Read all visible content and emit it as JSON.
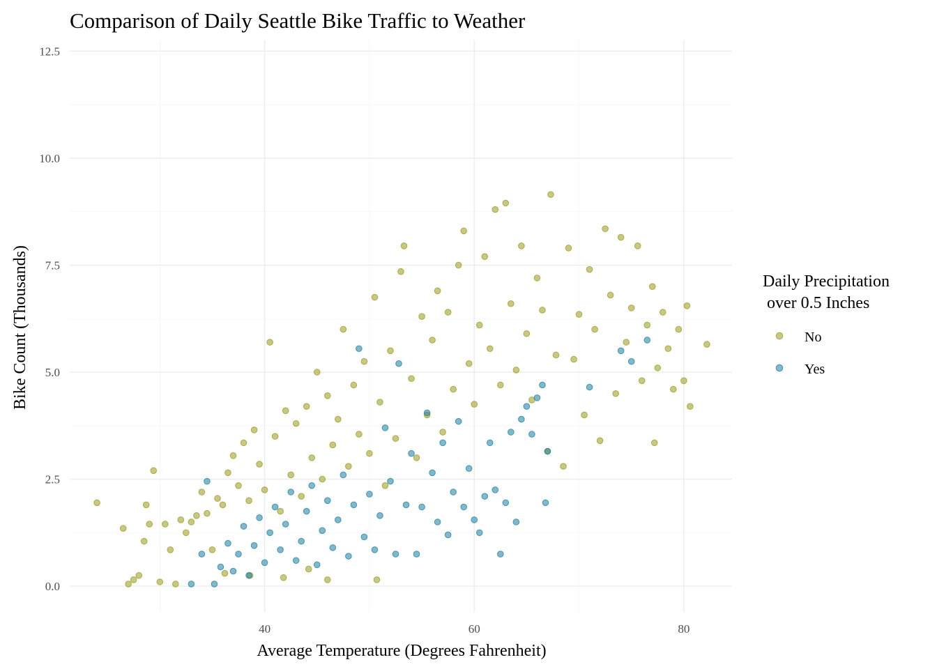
{
  "chart_data": {
    "type": "scatter",
    "title": "Comparison of Daily Seattle Bike Traffic to Weather",
    "xlabel": "Average Temperature (Degrees Fahrenheit)",
    "ylabel": "Bike Count (Thousands)",
    "xlim": [
      21.4,
      84.6
    ],
    "ylim": [
      -0.6,
      12.75
    ],
    "x_ticks": [
      40,
      60,
      80
    ],
    "y_ticks": [
      0.0,
      2.5,
      5.0,
      7.5,
      10.0,
      12.5
    ],
    "x_tick_labels": [
      "40",
      "60",
      "80"
    ],
    "y_tick_labels": [
      "0.0",
      "2.5",
      "5.0",
      "7.5",
      "10.0",
      "12.5"
    ],
    "grid": true,
    "legend": {
      "title": [
        "Daily Precipitation",
        " over 0.5 Inches"
      ],
      "placement": "right"
    },
    "series": [
      {
        "name": "No",
        "color": "#999a1c",
        "points": [
          [
            24.0,
            1.95
          ],
          [
            26.5,
            1.35
          ],
          [
            27.0,
            0.05
          ],
          [
            27.5,
            0.15
          ],
          [
            28.0,
            0.25
          ],
          [
            28.5,
            1.05
          ],
          [
            28.7,
            1.9
          ],
          [
            29.0,
            1.45
          ],
          [
            29.4,
            2.7
          ],
          [
            30.0,
            0.1
          ],
          [
            30.5,
            1.45
          ],
          [
            31.0,
            0.85
          ],
          [
            31.5,
            0.05
          ],
          [
            32.0,
            1.55
          ],
          [
            32.5,
            1.25
          ],
          [
            33.0,
            1.5
          ],
          [
            33.5,
            1.65
          ],
          [
            34.0,
            2.2
          ],
          [
            34.5,
            1.7
          ],
          [
            35.0,
            0.85
          ],
          [
            35.5,
            2.05
          ],
          [
            36.0,
            1.9
          ],
          [
            36.5,
            2.65
          ],
          [
            37.0,
            3.05
          ],
          [
            37.5,
            2.35
          ],
          [
            38.0,
            3.35
          ],
          [
            38.5,
            2.0
          ],
          [
            39.0,
            3.65
          ],
          [
            39.5,
            2.85
          ],
          [
            40.0,
            2.25
          ],
          [
            40.5,
            5.7
          ],
          [
            41.0,
            3.5
          ],
          [
            41.5,
            1.75
          ],
          [
            42.0,
            4.1
          ],
          [
            42.5,
            2.6
          ],
          [
            43.0,
            3.8
          ],
          [
            43.5,
            2.1
          ],
          [
            44.0,
            4.2
          ],
          [
            44.5,
            3.0
          ],
          [
            45.0,
            5.0
          ],
          [
            45.5,
            2.5
          ],
          [
            46.0,
            4.45
          ],
          [
            46.5,
            3.3
          ],
          [
            47.0,
            3.9
          ],
          [
            47.5,
            6.0
          ],
          [
            48.0,
            2.8
          ],
          [
            48.5,
            4.7
          ],
          [
            49.0,
            3.55
          ],
          [
            49.5,
            5.25
          ],
          [
            50.0,
            3.1
          ],
          [
            50.5,
            6.75
          ],
          [
            51.0,
            4.3
          ],
          [
            51.5,
            2.35
          ],
          [
            52.0,
            5.5
          ],
          [
            52.5,
            3.45
          ],
          [
            53.0,
            7.35
          ],
          [
            53.3,
            7.95
          ],
          [
            54.0,
            4.85
          ],
          [
            54.5,
            3.0
          ],
          [
            55.0,
            6.3
          ],
          [
            55.5,
            4.0
          ],
          [
            56.0,
            5.75
          ],
          [
            56.5,
            6.9
          ],
          [
            57.0,
            3.6
          ],
          [
            57.5,
            6.4
          ],
          [
            58.0,
            4.6
          ],
          [
            58.5,
            7.5
          ],
          [
            59.0,
            8.3
          ],
          [
            59.5,
            5.2
          ],
          [
            60.0,
            4.25
          ],
          [
            60.5,
            6.1
          ],
          [
            61.0,
            7.7
          ],
          [
            61.5,
            5.55
          ],
          [
            62.0,
            8.8
          ],
          [
            62.5,
            4.7
          ],
          [
            63.0,
            8.95
          ],
          [
            63.5,
            6.6
          ],
          [
            64.0,
            5.05
          ],
          [
            64.5,
            7.95
          ],
          [
            65.0,
            5.9
          ],
          [
            65.5,
            4.35
          ],
          [
            66.0,
            7.2
          ],
          [
            66.5,
            6.45
          ],
          [
            67.0,
            3.15
          ],
          [
            67.3,
            9.15
          ],
          [
            67.8,
            5.4
          ],
          [
            68.5,
            2.8
          ],
          [
            69.0,
            7.9
          ],
          [
            69.5,
            5.3
          ],
          [
            70.0,
            6.35
          ],
          [
            70.5,
            4.0
          ],
          [
            71.0,
            7.4
          ],
          [
            71.5,
            6.0
          ],
          [
            72.0,
            3.4
          ],
          [
            72.5,
            8.35
          ],
          [
            73.0,
            6.8
          ],
          [
            73.5,
            4.5
          ],
          [
            74.0,
            8.15
          ],
          [
            74.5,
            5.7
          ],
          [
            75.0,
            6.5
          ],
          [
            75.6,
            7.95
          ],
          [
            76.0,
            4.8
          ],
          [
            76.5,
            6.1
          ],
          [
            77.0,
            7.0
          ],
          [
            77.2,
            3.35
          ],
          [
            77.5,
            5.1
          ],
          [
            78.0,
            6.4
          ],
          [
            78.5,
            5.55
          ],
          [
            79.0,
            4.6
          ],
          [
            79.5,
            6.0
          ],
          [
            80.0,
            4.8
          ],
          [
            80.3,
            6.55
          ],
          [
            80.6,
            4.2
          ],
          [
            82.2,
            5.65
          ],
          [
            44.2,
            0.4
          ],
          [
            46.0,
            0.15
          ],
          [
            50.7,
            0.15
          ],
          [
            38.6,
            0.25
          ],
          [
            41.8,
            0.2
          ],
          [
            36.2,
            0.3
          ]
        ]
      },
      {
        "name": "Yes",
        "color": "#1a7fa3",
        "points": [
          [
            33.0,
            0.05
          ],
          [
            34.0,
            0.75
          ],
          [
            34.5,
            2.45
          ],
          [
            35.2,
            0.05
          ],
          [
            35.8,
            0.45
          ],
          [
            36.5,
            1.0
          ],
          [
            37.0,
            0.35
          ],
          [
            37.5,
            0.75
          ],
          [
            38.0,
            1.4
          ],
          [
            38.5,
            0.25
          ],
          [
            39.0,
            0.95
          ],
          [
            39.5,
            1.6
          ],
          [
            40.0,
            0.55
          ],
          [
            40.5,
            1.25
          ],
          [
            41.0,
            1.85
          ],
          [
            41.5,
            0.85
          ],
          [
            42.0,
            1.45
          ],
          [
            42.5,
            2.2
          ],
          [
            43.0,
            0.6
          ],
          [
            43.5,
            1.05
          ],
          [
            44.0,
            1.75
          ],
          [
            44.5,
            2.35
          ],
          [
            45.0,
            0.5
          ],
          [
            45.5,
            1.3
          ],
          [
            46.0,
            2.0
          ],
          [
            46.5,
            0.9
          ],
          [
            47.0,
            1.55
          ],
          [
            47.5,
            2.6
          ],
          [
            48.0,
            0.7
          ],
          [
            48.5,
            1.9
          ],
          [
            49.0,
            5.55
          ],
          [
            49.5,
            1.15
          ],
          [
            50.0,
            2.15
          ],
          [
            50.5,
            0.85
          ],
          [
            51.0,
            1.65
          ],
          [
            51.5,
            3.7
          ],
          [
            52.0,
            2.45
          ],
          [
            52.5,
            0.75
          ],
          [
            52.8,
            5.2
          ],
          [
            53.5,
            1.9
          ],
          [
            54.0,
            3.1
          ],
          [
            54.5,
            0.75
          ],
          [
            55.0,
            1.85
          ],
          [
            55.5,
            4.05
          ],
          [
            56.0,
            2.65
          ],
          [
            56.5,
            1.5
          ],
          [
            57.0,
            3.35
          ],
          [
            57.5,
            1.2
          ],
          [
            58.0,
            2.2
          ],
          [
            58.5,
            3.85
          ],
          [
            59.0,
            1.85
          ],
          [
            59.5,
            2.75
          ],
          [
            60.0,
            1.55
          ],
          [
            60.5,
            1.25
          ],
          [
            61.0,
            2.1
          ],
          [
            61.5,
            3.35
          ],
          [
            62.0,
            2.25
          ],
          [
            62.5,
            0.75
          ],
          [
            63.0,
            1.95
          ],
          [
            63.5,
            3.6
          ],
          [
            64.0,
            1.5
          ],
          [
            64.5,
            3.9
          ],
          [
            65.0,
            4.2
          ],
          [
            65.5,
            3.55
          ],
          [
            66.0,
            4.4
          ],
          [
            66.5,
            4.7
          ],
          [
            67.0,
            3.15
          ],
          [
            66.8,
            1.95
          ],
          [
            71.0,
            4.65
          ],
          [
            74.0,
            5.5
          ],
          [
            75.0,
            5.25
          ],
          [
            76.5,
            5.75
          ]
        ]
      }
    ]
  }
}
